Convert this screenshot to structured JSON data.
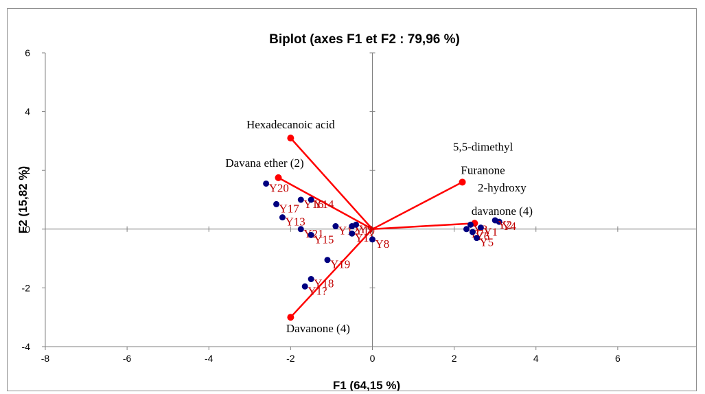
{
  "chart_data": {
    "type": "scatter",
    "title": "Biplot (axes F1 et F2 : 79,96 %)",
    "xlabel": "F1 (64,15 %)",
    "ylabel": "F2 (15,82 %)",
    "xlim": [
      -8,
      8
    ],
    "ylim": [
      -4,
      6
    ],
    "xticks": [
      "-8",
      "-6",
      "-4",
      "-2",
      "0",
      "2",
      "4",
      "6",
      "8"
    ],
    "yticks": [
      "-4",
      "-2",
      "0",
      "2",
      "4",
      "6"
    ],
    "grid": false,
    "colors": {
      "vectors": "#ff0000",
      "points": "#000080",
      "point_labels": "#c00000",
      "axes": "#808080"
    },
    "variables": [
      {
        "label": "Hexadecanoic acid",
        "x": -2.0,
        "y": 3.1,
        "label_lines": [
          "Hexadecanoic acid"
        ]
      },
      {
        "label": "Davana ether (2)",
        "x": -2.3,
        "y": 1.75,
        "label_lines": [
          "Davana ether (2)"
        ]
      },
      {
        "label": "5,5-dimethyl Furanone",
        "x": 2.2,
        "y": 1.6,
        "label_lines": [
          "5,5-dimethyl",
          "Furanone"
        ]
      },
      {
        "label": "2-hydroxy davanone (4)",
        "x": 2.5,
        "y": 0.2,
        "label_lines": [
          "2-hydroxy",
          "davanone (4)"
        ]
      },
      {
        "label": "Davanone (4)",
        "x": -2.0,
        "y": -3.0,
        "label_lines": [
          "Davanone (4)"
        ]
      }
    ],
    "observations": [
      {
        "label": "Y20",
        "x": -2.6,
        "y": 1.55
      },
      {
        "label": "Y16",
        "x": -1.75,
        "y": 1.0
      },
      {
        "label": "Y14",
        "x": -1.5,
        "y": 1.0
      },
      {
        "label": "Y17",
        "x": -2.35,
        "y": 0.85
      },
      {
        "label": "Y13",
        "x": -2.2,
        "y": 0.4
      },
      {
        "label": "Y21",
        "x": -1.75,
        "y": 0.0
      },
      {
        "label": "Y15",
        "x": -1.5,
        "y": -0.2
      },
      {
        "label": "Y12",
        "x": -0.9,
        "y": 0.1
      },
      {
        "label": "Y11",
        "x": -0.5,
        "y": -0.15
      },
      {
        "label": "Y10",
        "x": -0.5,
        "y": 0.1
      },
      {
        "label": "Y9",
        "x": -0.4,
        "y": 0.15
      },
      {
        "label": "Y8",
        "x": 0.0,
        "y": -0.35
      },
      {
        "label": "Y19",
        "x": -1.1,
        "y": -1.05
      },
      {
        "label": "Y18",
        "x": -1.5,
        "y": -1.7
      },
      {
        "label": "Y1?",
        "x": -1.65,
        "y": -1.95
      },
      {
        "label": "Y3",
        "x": 2.4,
        "y": 0.15
      },
      {
        "label": "Y4",
        "x": 3.1,
        "y": 0.25
      },
      {
        "label": "Y2",
        "x": 3.0,
        "y": 0.3
      },
      {
        "label": "Y1",
        "x": 2.65,
        "y": 0.05
      },
      {
        "label": "Y7",
        "x": 2.3,
        "y": 0.0
      },
      {
        "label": "Y6",
        "x": 2.45,
        "y": -0.1
      },
      {
        "label": "Y5",
        "x": 2.55,
        "y": -0.3
      }
    ]
  }
}
